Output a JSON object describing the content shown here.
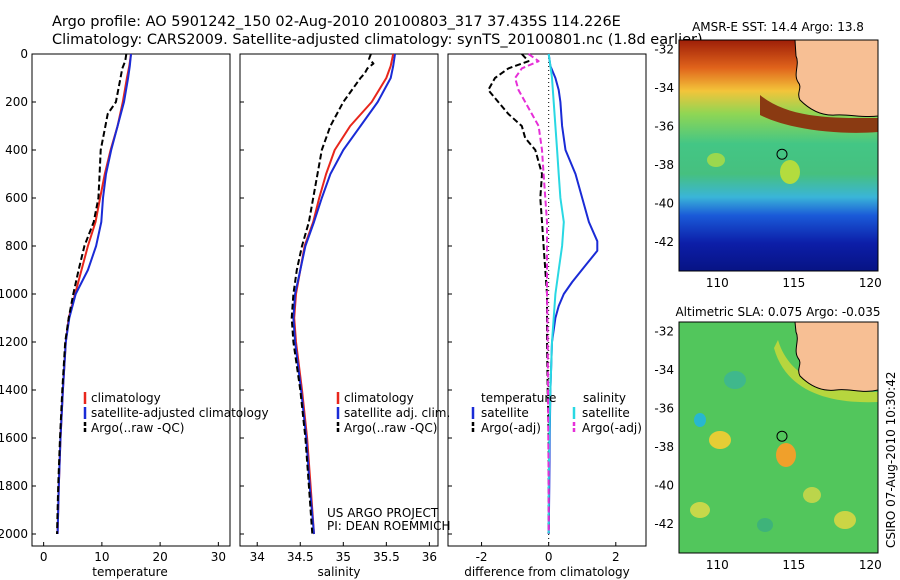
{
  "header": {
    "line1": "Argo profile: AO 5901242_150 02-Aug-2010 20100803_317 37.435S 114.226E",
    "line2": "Climatology: CARS2009. Satellite-adjusted climatology: synTS_20100801.nc (1.8d earlier)"
  },
  "side_label": "CSIRO 07-Aug-2010 10:30:42",
  "credit": {
    "line1": "US ARGO PROJECT",
    "line2": "PI: DEAN ROEMMICH"
  },
  "colors": {
    "climatology": "#e8261c",
    "satellite": "#1a2bd6",
    "argo": "#000000",
    "sal_satellite": "#29d8e3",
    "sal_argo": "#e62fd8"
  },
  "chart_data": [
    {
      "type": "line",
      "id": "temperature",
      "xlabel": "temperature",
      "xlim": [
        -2,
        32
      ],
      "xticks": [
        0,
        10,
        20,
        30
      ],
      "ylim": [
        0,
        2050
      ],
      "yticks": [
        0,
        200,
        400,
        600,
        800,
        1000,
        1200,
        1400,
        1600,
        1800,
        2000
      ],
      "y_reversed": true,
      "legend": [
        "climatology",
        "satellite-adjusted climatology",
        "Argo(..raw -QC)"
      ],
      "series": [
        {
          "name": "climatology",
          "color": "#e8261c",
          "dash": "",
          "depth": [
            0,
            50,
            100,
            200,
            300,
            400,
            500,
            600,
            700,
            800,
            900,
            1000,
            1100,
            1200,
            1400,
            1600,
            1800,
            2000
          ],
          "values": [
            15.0,
            14.7,
            14.3,
            13.6,
            12.7,
            11.5,
            10.5,
            9.7,
            8.9,
            7.6,
            6.5,
            5.4,
            4.3,
            3.8,
            3.3,
            2.9,
            2.6,
            2.4
          ]
        },
        {
          "name": "satellite-adjusted climatology",
          "color": "#1a2bd6",
          "dash": "",
          "depth": [
            0,
            50,
            100,
            200,
            300,
            400,
            500,
            600,
            700,
            800,
            900,
            1000,
            1100,
            1200,
            1400,
            1600,
            1800,
            2000
          ],
          "values": [
            15.0,
            14.8,
            14.5,
            13.8,
            12.7,
            11.6,
            10.7,
            10.2,
            9.9,
            9.0,
            7.6,
            5.5,
            4.4,
            3.8,
            3.3,
            2.9,
            2.6,
            2.4
          ]
        },
        {
          "name": "Argo(..raw -QC)",
          "color": "#000000",
          "dash": "6,3",
          "depth": [
            0,
            30,
            60,
            100,
            200,
            250,
            300,
            400,
            500,
            600,
            700,
            800,
            900,
            1000,
            1100,
            1200,
            1400,
            1600,
            1800,
            2000
          ],
          "values": [
            14.2,
            14.0,
            13.5,
            13.2,
            12.4,
            11.0,
            10.6,
            9.8,
            9.6,
            9.4,
            8.6,
            7.0,
            6.0,
            5.1,
            4.3,
            3.7,
            3.2,
            2.8,
            2.5,
            2.3
          ]
        }
      ]
    },
    {
      "type": "line",
      "id": "salinity",
      "xlabel": "salinity",
      "xlim": [
        33.8,
        36.1
      ],
      "xticks": [
        34,
        34.5,
        35,
        35.5,
        36
      ],
      "ylim": [
        0,
        2050
      ],
      "y_reversed": true,
      "legend": [
        "climatology",
        "satellite adj. clim.",
        "Argo(..raw -QC)"
      ],
      "series": [
        {
          "name": "climatology",
          "color": "#e8261c",
          "dash": "",
          "depth": [
            0,
            50,
            100,
            200,
            300,
            400,
            500,
            600,
            700,
            800,
            900,
            1000,
            1100,
            1200,
            1400,
            1600,
            1800,
            2000
          ],
          "values": [
            35.58,
            35.55,
            35.5,
            35.33,
            35.08,
            34.9,
            34.8,
            34.72,
            34.65,
            34.55,
            34.5,
            34.45,
            34.43,
            34.45,
            34.52,
            34.58,
            34.62,
            34.66
          ]
        },
        {
          "name": "satellite adj. clim.",
          "color": "#1a2bd6",
          "dash": "",
          "depth": [
            0,
            50,
            100,
            200,
            300,
            400,
            500,
            600,
            700,
            800,
            900,
            1000,
            1100,
            1200,
            1400,
            1600,
            1800,
            2000
          ],
          "values": [
            35.6,
            35.58,
            35.55,
            35.4,
            35.2,
            35.0,
            34.85,
            34.75,
            34.66,
            34.56,
            34.5,
            34.44,
            34.42,
            34.44,
            34.51,
            34.57,
            34.61,
            34.66
          ]
        },
        {
          "name": "Argo(..raw -QC)",
          "color": "#000000",
          "dash": "6,3",
          "depth": [
            0,
            20,
            40,
            60,
            80,
            100,
            150,
            200,
            300,
            400,
            500,
            600,
            700,
            800,
            900,
            1000,
            1100,
            1200,
            1400,
            1600,
            1800,
            2000
          ],
          "values": [
            35.32,
            35.3,
            35.35,
            35.28,
            35.25,
            35.2,
            35.1,
            35.0,
            34.85,
            34.75,
            34.7,
            34.65,
            34.6,
            34.52,
            34.46,
            34.42,
            34.4,
            34.42,
            34.5,
            34.56,
            34.6,
            34.64
          ]
        }
      ]
    },
    {
      "type": "line",
      "id": "difference",
      "xlabel": "difference from climatology",
      "xlim": [
        -3,
        2.9
      ],
      "xticks": [
        -2,
        0,
        2
      ],
      "ylim": [
        0,
        2050
      ],
      "y_reversed": true,
      "legend_left": {
        "title": "temperature",
        "items": [
          "satellite",
          "Argo(-adj)"
        ]
      },
      "legend_right": {
        "title": "salinity",
        "items": [
          "satellite",
          "Argo(-adj)"
        ]
      },
      "series": [
        {
          "name": "temperature satellite",
          "color": "#1a2bd6",
          "dash": "",
          "depth": [
            0,
            50,
            100,
            150,
            200,
            300,
            400,
            500,
            600,
            700,
            780,
            820,
            880,
            950,
            1000,
            1050,
            1100,
            1200,
            1400,
            1600,
            1800,
            2000
          ],
          "values": [
            0.0,
            0.05,
            0.2,
            0.3,
            0.35,
            0.4,
            0.5,
            0.8,
            1.0,
            1.2,
            1.45,
            1.45,
            1.1,
            0.7,
            0.45,
            0.3,
            0.2,
            0.1,
            0.05,
            0.03,
            0.02,
            0.0
          ]
        },
        {
          "name": "temperature Argo(-adj)",
          "color": "#000000",
          "dash": "6,3",
          "depth": [
            0,
            30,
            60,
            100,
            150,
            200,
            250,
            300,
            350,
            400,
            500,
            600,
            700,
            800,
            900,
            1000,
            1200,
            1400,
            1600,
            1800,
            2000
          ],
          "values": [
            -0.8,
            -0.6,
            -1.2,
            -1.6,
            -1.8,
            -1.5,
            -1.2,
            -0.8,
            -0.7,
            -0.4,
            -0.2,
            -0.25,
            -0.2,
            -0.15,
            -0.1,
            -0.05,
            -0.05,
            -0.03,
            0.0,
            0.0,
            0.0
          ]
        },
        {
          "name": "salinity satellite",
          "color": "#29d8e3",
          "dash": "",
          "depth": [
            0,
            50,
            100,
            200,
            300,
            400,
            500,
            600,
            700,
            800,
            900,
            1000,
            1200,
            1400,
            1600,
            1800,
            2000
          ],
          "values": [
            0.0,
            0.05,
            0.1,
            0.15,
            0.2,
            0.25,
            0.3,
            0.35,
            0.45,
            0.4,
            0.3,
            0.2,
            0.1,
            0.05,
            0.02,
            0.0,
            0.0
          ]
        },
        {
          "name": "salinity Argo(-adj)",
          "color": "#e62fd8",
          "dash": "6,3",
          "depth": [
            0,
            30,
            60,
            100,
            150,
            200,
            250,
            300,
            400,
            500,
            600,
            700,
            800,
            900,
            1000,
            1200,
            1400,
            1600,
            1800,
            2000
          ],
          "values": [
            -0.6,
            -0.3,
            -0.8,
            -1.0,
            -0.9,
            -0.7,
            -0.5,
            -0.3,
            -0.2,
            -0.15,
            -0.1,
            -0.05,
            -0.05,
            -0.05,
            -0.05,
            -0.03,
            -0.02,
            -0.01,
            0.0,
            0.0
          ]
        }
      ]
    },
    {
      "type": "heatmap",
      "id": "sst_map",
      "title": "AMSR-E SST: 14.4 Argo: 13.8",
      "xticks": [
        110,
        115,
        120
      ],
      "yticks": [
        -32,
        -34,
        -36,
        -38,
        -40,
        -42
      ],
      "xlim": [
        107.5,
        120.5
      ],
      "ylim": [
        -43.5,
        -31.5
      ],
      "marker": {
        "lon": 114.226,
        "lat": -37.435
      }
    },
    {
      "type": "heatmap",
      "id": "sla_map",
      "title": "Altimetric SLA: 0.075 Argo: -0.035",
      "xticks": [
        110,
        115,
        120
      ],
      "yticks": [
        -32,
        -34,
        -36,
        -38,
        -40,
        -42
      ],
      "xlim": [
        107.5,
        120.5
      ],
      "ylim": [
        -43.5,
        -31.5
      ],
      "marker": {
        "lon": 114.226,
        "lat": -37.435
      }
    }
  ]
}
